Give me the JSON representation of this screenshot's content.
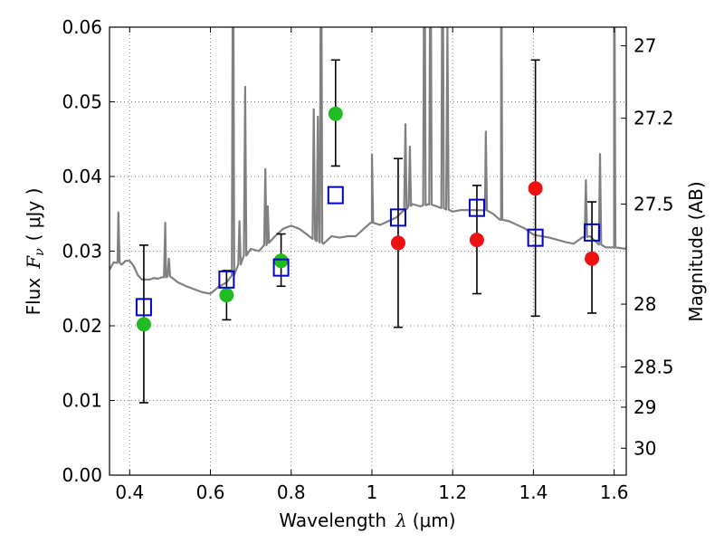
{
  "chart_data": {
    "type": "scatter",
    "xlabel": "Wavelength",
    "xlabel_symbol": "λ",
    "xlabel_unit": "(μm)",
    "ylabel": "Flux",
    "ylabel_symbol": "F",
    "ylabel_subscript": "ν",
    "ylabel_unit": "( μJy )",
    "y2label": "Magnitude (AB)",
    "xlim": [
      0.35,
      1.63
    ],
    "ylim": [
      0.0,
      0.06
    ],
    "grid": true,
    "x_ticks": [
      0.4,
      0.6,
      0.8,
      1.0,
      1.2,
      1.4,
      1.6
    ],
    "x_tick_labels": [
      "0.4",
      "0.6",
      "0.8",
      "1",
      "1.2",
      "1.4",
      "1.6"
    ],
    "y_ticks": [
      0.0,
      0.01,
      0.02,
      0.03,
      0.04,
      0.05,
      0.06
    ],
    "y_tick_labels": [
      "0.00",
      "0.01",
      "0.02",
      "0.03",
      "0.04",
      "0.05",
      "0.06"
    ],
    "mag_ticks": [
      {
        "label": "27",
        "flux": 0.0575
      },
      {
        "label": "27.2",
        "flux": 0.0478
      },
      {
        "label": "27.5",
        "flux": 0.0363
      },
      {
        "label": "28",
        "flux": 0.0229
      },
      {
        "label": "28.5",
        "flux": 0.0145
      },
      {
        "label": "29",
        "flux": 0.0091
      },
      {
        "label": "30",
        "flux": 0.0036
      }
    ],
    "colors": {
      "spectrum": "#808080",
      "detected": "#22bb22",
      "nondetected": "#ee1111",
      "model": "#0000cc",
      "errorbar": "#000000",
      "grid": "#808080"
    },
    "series": [
      {
        "role": "observed_green",
        "points": [
          {
            "x": 0.435,
            "y": 0.0202,
            "ylo": 0.0097,
            "yhi": 0.0308
          },
          {
            "x": 0.64,
            "y": 0.0241,
            "ylo": 0.0208,
            "yhi": 0.0274
          },
          {
            "x": 0.775,
            "y": 0.0287,
            "ylo": 0.0253,
            "yhi": 0.0323
          },
          {
            "x": 0.91,
            "y": 0.0484,
            "ylo": 0.0414,
            "yhi": 0.0556
          }
        ]
      },
      {
        "role": "observed_red",
        "points": [
          {
            "x": 1.065,
            "y": 0.0311,
            "ylo": 0.0198,
            "yhi": 0.0424
          },
          {
            "x": 1.26,
            "y": 0.0315,
            "ylo": 0.0243,
            "yhi": 0.0388
          },
          {
            "x": 1.405,
            "y": 0.0384,
            "ylo": 0.0213,
            "yhi": 0.0556
          },
          {
            "x": 1.545,
            "y": 0.029,
            "ylo": 0.0217,
            "yhi": 0.0366
          }
        ]
      },
      {
        "role": "model_squares",
        "points": [
          {
            "x": 0.435,
            "y": 0.0225
          },
          {
            "x": 0.64,
            "y": 0.0262
          },
          {
            "x": 0.775,
            "y": 0.0278
          },
          {
            "x": 0.91,
            "y": 0.0375
          },
          {
            "x": 1.065,
            "y": 0.0345
          },
          {
            "x": 1.26,
            "y": 0.0358
          },
          {
            "x": 1.405,
            "y": 0.0318
          },
          {
            "x": 1.545,
            "y": 0.0325
          }
        ]
      }
    ],
    "spectrum": {
      "continuum": [
        [
          0.35,
          0.0275
        ],
        [
          0.36,
          0.0285
        ],
        [
          0.37,
          0.0285
        ],
        [
          0.38,
          0.0282
        ],
        [
          0.39,
          0.0287
        ],
        [
          0.4,
          0.0287
        ],
        [
          0.41,
          0.028
        ],
        [
          0.42,
          0.0268
        ],
        [
          0.43,
          0.0262
        ],
        [
          0.44,
          0.0262
        ],
        [
          0.45,
          0.0262
        ],
        [
          0.46,
          0.0264
        ],
        [
          0.47,
          0.0263
        ],
        [
          0.48,
          0.0265
        ],
        [
          0.49,
          0.0265
        ],
        [
          0.5,
          0.0267
        ],
        [
          0.52,
          0.0258
        ],
        [
          0.54,
          0.0253
        ],
        [
          0.56,
          0.0249
        ],
        [
          0.58,
          0.0245
        ],
        [
          0.6,
          0.0243
        ],
        [
          0.62,
          0.0252
        ],
        [
          0.64,
          0.0258
        ],
        [
          0.66,
          0.027
        ],
        [
          0.68,
          0.029
        ],
        [
          0.7,
          0.0303
        ],
        [
          0.72,
          0.03
        ],
        [
          0.74,
          0.031
        ],
        [
          0.76,
          0.032
        ],
        [
          0.78,
          0.033
        ],
        [
          0.8,
          0.0334
        ],
        [
          0.82,
          0.033
        ],
        [
          0.84,
          0.0322
        ],
        [
          0.86,
          0.0315
        ],
        [
          0.88,
          0.031
        ],
        [
          0.9,
          0.032
        ],
        [
          0.92,
          0.0318
        ],
        [
          0.94,
          0.032
        ],
        [
          0.96,
          0.032
        ],
        [
          0.98,
          0.033
        ],
        [
          1.0,
          0.0338
        ],
        [
          1.02,
          0.0335
        ],
        [
          1.04,
          0.034
        ],
        [
          1.06,
          0.0345
        ],
        [
          1.08,
          0.0355
        ],
        [
          1.1,
          0.0363
        ],
        [
          1.12,
          0.036
        ],
        [
          1.14,
          0.0363
        ],
        [
          1.16,
          0.036
        ],
        [
          1.18,
          0.0357
        ],
        [
          1.2,
          0.0353
        ],
        [
          1.22,
          0.0355
        ],
        [
          1.24,
          0.0355
        ],
        [
          1.26,
          0.0355
        ],
        [
          1.28,
          0.0355
        ],
        [
          1.3,
          0.035
        ],
        [
          1.32,
          0.0342
        ],
        [
          1.34,
          0.034
        ],
        [
          1.36,
          0.0335
        ],
        [
          1.38,
          0.033
        ],
        [
          1.4,
          0.0322
        ],
        [
          1.42,
          0.032
        ],
        [
          1.44,
          0.0318
        ],
        [
          1.46,
          0.0315
        ],
        [
          1.48,
          0.0312
        ],
        [
          1.5,
          0.031
        ],
        [
          1.52,
          0.0318
        ],
        [
          1.54,
          0.032
        ],
        [
          1.56,
          0.031
        ],
        [
          1.58,
          0.0305
        ],
        [
          1.6,
          0.0305
        ],
        [
          1.63,
          0.0303
        ]
      ],
      "lines": [
        {
          "x": 0.372,
          "peak": 0.0352
        },
        {
          "x": 0.488,
          "peak": 0.0338
        },
        {
          "x": 0.497,
          "peak": 0.029
        },
        {
          "x": 0.656,
          "peak": 0.08
        },
        {
          "x": 0.672,
          "peak": 0.034
        },
        {
          "x": 0.686,
          "peak": 0.052
        },
        {
          "x": 0.736,
          "peak": 0.041
        },
        {
          "x": 0.742,
          "peak": 0.036
        },
        {
          "x": 0.856,
          "peak": 0.049
        },
        {
          "x": 0.866,
          "peak": 0.048
        },
        {
          "x": 0.874,
          "peak": 0.08
        },
        {
          "x": 1.0,
          "peak": 0.043
        },
        {
          "x": 1.083,
          "peak": 0.047
        },
        {
          "x": 1.094,
          "peak": 0.044
        },
        {
          "x": 1.13,
          "peak": 0.08
        },
        {
          "x": 1.145,
          "peak": 0.08
        },
        {
          "x": 1.175,
          "peak": 0.08
        },
        {
          "x": 1.187,
          "peak": 0.06
        },
        {
          "x": 1.282,
          "peak": 0.046
        },
        {
          "x": 1.32,
          "peak": 0.08
        },
        {
          "x": 1.53,
          "peak": 0.0395
        },
        {
          "x": 1.565,
          "peak": 0.043
        },
        {
          "x": 1.6,
          "peak": 0.08
        }
      ]
    }
  }
}
